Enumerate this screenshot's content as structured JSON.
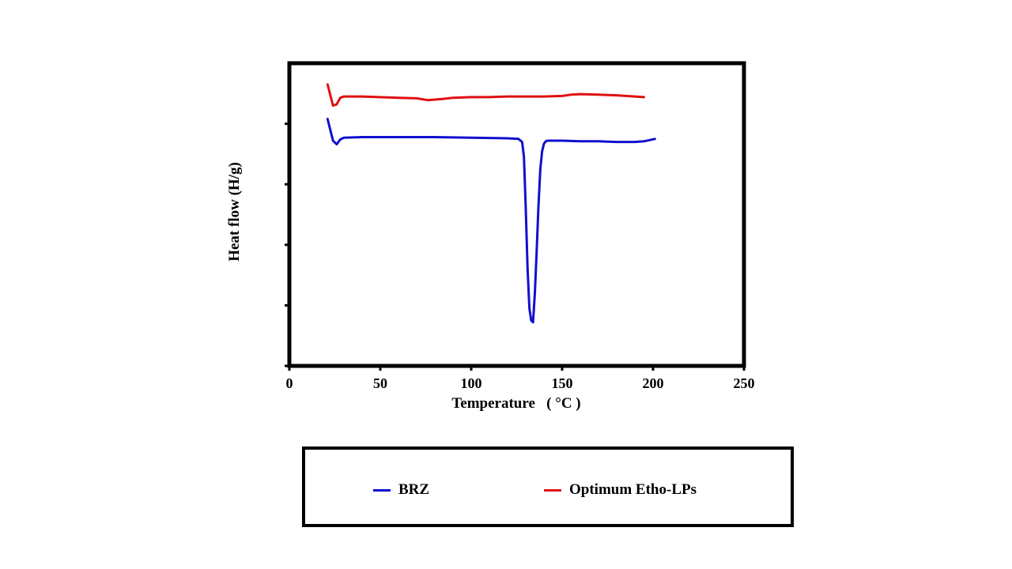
{
  "chart_data": {
    "type": "line",
    "xlabel": "Temperature   ( °C )",
    "ylabel": "Heat flow (H/g)",
    "xlim": [
      0,
      250
    ],
    "ylim": [
      0,
      5
    ],
    "xticks": [
      0,
      50,
      100,
      150,
      200,
      250
    ],
    "yticks": [
      1,
      2,
      3,
      4
    ],
    "show_y_tick_labels": false,
    "grid": false,
    "legend_position": "bottom",
    "series": [
      {
        "name": "BRZ",
        "color": "#1010d0",
        "x": [
          21,
          24,
          26,
          28,
          30,
          40,
          60,
          80,
          100,
          120,
          126,
          128,
          129,
          130,
          131,
          132,
          133,
          134,
          135,
          136,
          137,
          138,
          139,
          140,
          141,
          142,
          145,
          150,
          160,
          170,
          180,
          190,
          195,
          198,
          201
        ],
        "y": [
          4.08,
          3.72,
          3.66,
          3.74,
          3.77,
          3.78,
          3.78,
          3.78,
          3.77,
          3.76,
          3.75,
          3.7,
          3.45,
          2.6,
          1.6,
          0.95,
          0.75,
          0.72,
          1.2,
          1.9,
          2.65,
          3.25,
          3.55,
          3.67,
          3.71,
          3.72,
          3.72,
          3.72,
          3.71,
          3.71,
          3.7,
          3.7,
          3.71,
          3.73,
          3.75
        ]
      },
      {
        "name": "Optimum Etho-LPs",
        "color": "#e01010",
        "x": [
          21,
          24,
          26,
          28,
          30,
          40,
          60,
          70,
          76,
          80,
          84,
          90,
          100,
          110,
          120,
          130,
          140,
          150,
          155,
          160,
          170,
          180,
          190,
          195
        ],
        "y": [
          4.65,
          4.3,
          4.32,
          4.43,
          4.45,
          4.45,
          4.43,
          4.42,
          4.39,
          4.4,
          4.41,
          4.43,
          4.44,
          4.44,
          4.45,
          4.45,
          4.45,
          4.46,
          4.48,
          4.49,
          4.48,
          4.47,
          4.45,
          4.44
        ]
      }
    ]
  }
}
